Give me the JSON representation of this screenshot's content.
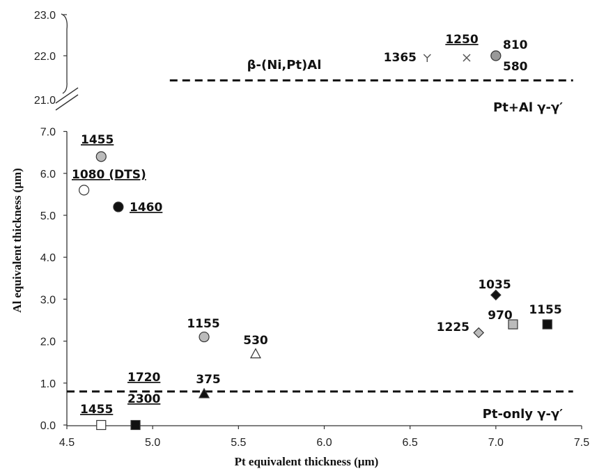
{
  "chart_data": {
    "type": "scatter",
    "title": "",
    "xlabel": "Pt equivalent thickness (µm)",
    "ylabel": "Al equivalent thickness (µm)",
    "xlim": [
      4.5,
      7.5
    ],
    "ylim": [
      0.0,
      7.0
    ],
    "ylim_upper": [
      21.0,
      23.0
    ],
    "axis_break": true,
    "grid": false,
    "x_ticks": [
      "4.5",
      "5.0",
      "5.5",
      "6.0",
      "6.5",
      "7.0",
      "7.5"
    ],
    "y_ticks": [
      "0.0",
      "1.0",
      "2.0",
      "3.0",
      "4.0",
      "5.0",
      "6.0",
      "7.0"
    ],
    "y_ticks_upper": [
      "21.0",
      "22.0",
      "23.0"
    ],
    "reference_lines": [
      {
        "y": 21.4,
        "x_start": 5.1,
        "x_end": 7.45,
        "style": "dashed",
        "label_above": "β-(Ni,Pt)Al",
        "label_below": "Pt+Al γ-γ′"
      },
      {
        "y": 0.8,
        "x_start": 4.5,
        "x_end": 7.45,
        "style": "dashed",
        "label_below": "Pt-only γ-γ′"
      }
    ],
    "points": [
      {
        "label": "1455",
        "underline": true,
        "x": 4.7,
        "y": 6.4,
        "marker": "circle",
        "fill": "#bbbbbb"
      },
      {
        "label": "1080 (DTS)",
        "underline": true,
        "x": 4.6,
        "y": 5.6,
        "marker": "circle",
        "fill": "#ffffff"
      },
      {
        "label": "1460",
        "underline": true,
        "x": 4.8,
        "y": 5.2,
        "marker": "circle",
        "fill": "#111111"
      },
      {
        "label": "1155",
        "underline": false,
        "x": 5.3,
        "y": 2.1,
        "marker": "circle",
        "fill": "#bbbbbb"
      },
      {
        "label": "530",
        "underline": false,
        "x": 5.6,
        "y": 1.7,
        "marker": "triangle",
        "fill": "#ffffff"
      },
      {
        "label": "375",
        "underline": false,
        "x": 5.3,
        "y": 0.8,
        "marker": "triangle",
        "fill": "#111111"
      },
      {
        "label": "1720",
        "underline": true,
        "x": 4.9,
        "y": 0.0,
        "marker": "square",
        "fill": "#111111"
      },
      {
        "label": "2300",
        "underline": true,
        "x": 4.9,
        "y": 0.0,
        "marker": "square",
        "fill": "#111111"
      },
      {
        "label": "1455",
        "underline": true,
        "x": 4.7,
        "y": 0.0,
        "marker": "square",
        "fill": "#ffffff"
      },
      {
        "label": "1035",
        "underline": false,
        "x": 7.0,
        "y": 3.1,
        "marker": "diamond",
        "fill": "#111111"
      },
      {
        "label": "970",
        "underline": false,
        "x": 7.1,
        "y": 2.4,
        "marker": "square",
        "fill": "#bbbbbb"
      },
      {
        "label": "1155",
        "underline": false,
        "x": 7.3,
        "y": 2.4,
        "marker": "square",
        "fill": "#111111"
      },
      {
        "label": "1225",
        "underline": false,
        "x": 6.9,
        "y": 2.2,
        "marker": "diamond",
        "fill": "#bbbbbb"
      },
      {
        "label": "1365",
        "underline": false,
        "x": 6.6,
        "y": 22.0,
        "marker": "star",
        "fill": "#555555"
      },
      {
        "label": "1250",
        "underline": true,
        "x": 6.83,
        "y": 22.0,
        "marker": "x",
        "fill": "#555555"
      },
      {
        "label": "810",
        "underline": false,
        "x": 7.0,
        "y": 22.0,
        "marker": "circle",
        "fill": "#999999"
      },
      {
        "label": "580",
        "underline": false,
        "x": 7.0,
        "y": 22.0,
        "marker": "circle",
        "fill": "#999999"
      }
    ]
  }
}
